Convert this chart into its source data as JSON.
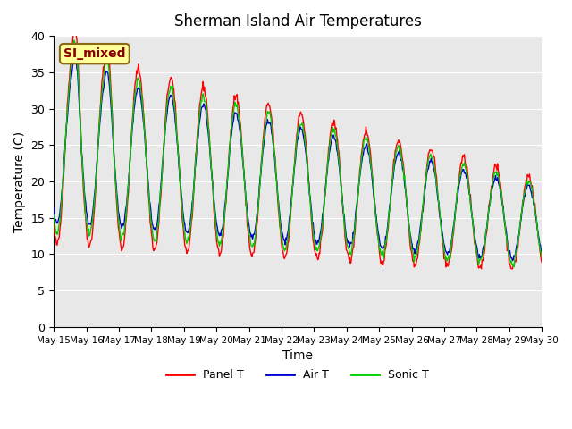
{
  "title": "Sherman Island Air Temperatures",
  "xlabel": "Time",
  "ylabel": "Temperature (C)",
  "ylim": [
    0,
    40
  ],
  "yticks": [
    0,
    5,
    10,
    15,
    20,
    25,
    30,
    35,
    40
  ],
  "bg_color": "#e8e8e8",
  "annotation_text": "SI_mixed",
  "annotation_color": "#8b0000",
  "annotation_bg": "#ffff99",
  "colors": {
    "panel": "#ff0000",
    "air": "#0000cd",
    "sonic": "#00cc00"
  },
  "legend_labels": [
    "Panel T",
    "Air T",
    "Sonic T"
  ],
  "x_tick_labels": [
    "May 15",
    "May 16",
    "May 17",
    "May 18",
    "May 19",
    "May 20",
    "May 21",
    "May 22",
    "May 23",
    "May 24",
    "May 25",
    "May 26",
    "May 27",
    "May 28",
    "May 29",
    "May 30"
  ],
  "n_days": 15
}
